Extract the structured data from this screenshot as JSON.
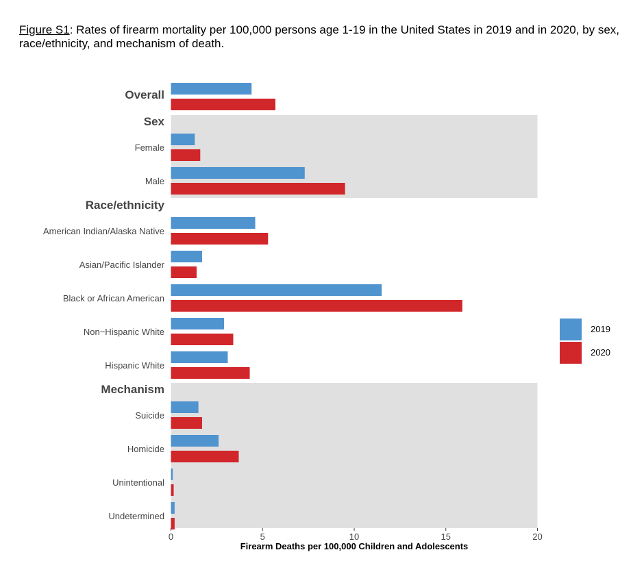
{
  "caption": {
    "label": "Figure S1",
    "text": ": Rates of firearm mortality per 100,000 persons age 1-19 in the United States in 2019 and in 2020, by sex, race/ethnicity, and mechanism of death."
  },
  "colors": {
    "2019": "#4f93cf",
    "2020": "#d1262a",
    "panel_shade": "#e0e0e0"
  },
  "chart_data": {
    "type": "bar",
    "orientation": "horizontal",
    "xlabel": "Firearm Deaths per 100,000 Children and Adolescents",
    "xlim": [
      0,
      20
    ],
    "xticks": [
      0,
      5,
      10,
      15,
      20
    ],
    "legend": {
      "placement": "right",
      "entries": [
        "2019",
        "2020"
      ]
    },
    "groups": [
      {
        "name": "Overall",
        "shaded": false,
        "categories": [
          {
            "label": "",
            "values": {
              "2019": 4.4,
              "2020": 5.7
            }
          }
        ]
      },
      {
        "name": "Sex",
        "shaded": true,
        "categories": [
          {
            "label": "Female",
            "values": {
              "2019": 1.3,
              "2020": 1.6
            }
          },
          {
            "label": "Male",
            "values": {
              "2019": 7.3,
              "2020": 9.5
            }
          }
        ]
      },
      {
        "name": "Race/ethnicity",
        "shaded": false,
        "categories": [
          {
            "label": "American Indian/Alaska Native",
            "values": {
              "2019": 4.6,
              "2020": 5.3
            }
          },
          {
            "label": "Asian/Pacific Islander",
            "values": {
              "2019": 1.7,
              "2020": 1.4
            }
          },
          {
            "label": "Black or African American",
            "values": {
              "2019": 11.5,
              "2020": 15.9
            }
          },
          {
            "label": "Non−Hispanic White",
            "values": {
              "2019": 2.9,
              "2020": 3.4
            }
          },
          {
            "label": "Hispanic White",
            "values": {
              "2019": 3.1,
              "2020": 4.3
            }
          }
        ]
      },
      {
        "name": "Mechanism",
        "shaded": true,
        "categories": [
          {
            "label": "Suicide",
            "values": {
              "2019": 1.5,
              "2020": 1.7
            }
          },
          {
            "label": "Homicide",
            "values": {
              "2019": 2.6,
              "2020": 3.7
            }
          },
          {
            "label": "Unintentional",
            "values": {
              "2019": 0.1,
              "2020": 0.15
            }
          },
          {
            "label": "Undetermined",
            "values": {
              "2019": 0.2,
              "2020": 0.2
            }
          }
        ]
      }
    ]
  }
}
